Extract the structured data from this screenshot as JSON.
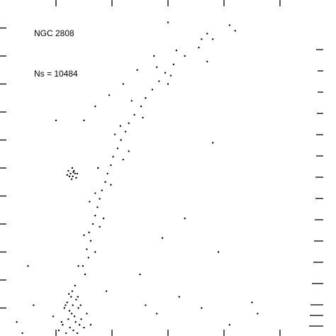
{
  "chart_data": {
    "type": "scatter",
    "annotations": [
      "NGC 2808",
      "Ns = 10484"
    ],
    "color": "#000000",
    "xlim": [
      0,
      6
    ],
    "ylim": [
      24,
      12
    ],
    "xticks": [
      1,
      2,
      3,
      4,
      5
    ],
    "yticks": [
      13,
      14,
      15,
      16,
      17,
      18,
      19,
      20,
      21,
      22,
      23
    ],
    "x": [
      1.05,
      1.12,
      1.18,
      1.22,
      1.25,
      1.28,
      1.31,
      1.35,
      1.38,
      1.42,
      1.15,
      1.2,
      1.24,
      1.27,
      1.3,
      1.33,
      1.36,
      1.4,
      1.45,
      1.5,
      1.1,
      1.17,
      1.23,
      1.29,
      1.34,
      1.39,
      1.44,
      1.55,
      1.62,
      0.95,
      1.52,
      1.48,
      1.58,
      1.55,
      1.62,
      1.59,
      1.66,
      1.7,
      1.74,
      1.78,
      1.82,
      1.88,
      1.92,
      1.98,
      2.02,
      2.1,
      2.16,
      2.24,
      2.3,
      2.4,
      2.52,
      2.6,
      2.72,
      2.84,
      2.95,
      3.1,
      3.3,
      3.55,
      3.8,
      4.2,
      1.7,
      1.5,
      1.85,
      1.6,
      1.98,
      1.75,
      2.3,
      2.05,
      2.55,
      2.35,
      3.0,
      2.8,
      3.15,
      3.6,
      1.4,
      1.78,
      1.7,
      2.2,
      2.15,
      3.05,
      1.22,
      1.26,
      1.3,
      1.34,
      1.28,
      1.32,
      1.24,
      1.38,
      1.29,
      1.36,
      1.2,
      1.31,
      1.5,
      1.7,
      1.95,
      2.2,
      2.45,
      2.75,
      3.7,
      4.1,
      0.3,
      0.6,
      2.8,
      3.2,
      3.6,
      4.1,
      4.5,
      3.8,
      2.9,
      3.3,
      0.5,
      2.5,
      3.9,
      1.9,
      2.6,
      4.6,
      0.4,
      3.0,
      1.0,
      3.7
    ],
    "values": [
      23.8,
      23.6,
      23.9,
      23.4,
      23.7,
      23.2,
      23.8,
      23.5,
      23.9,
      23.6,
      23.0,
      22.8,
      23.1,
      22.6,
      22.9,
      23.3,
      22.7,
      23.0,
      23.4,
      23.7,
      23.5,
      22.9,
      22.5,
      22.4,
      22.2,
      22.6,
      22.9,
      23.2,
      23.6,
      23.3,
      21.8,
      21.5,
      21.2,
      20.9,
      20.6,
      20.3,
      20.0,
      19.7,
      19.4,
      19.1,
      18.8,
      18.5,
      18.2,
      17.9,
      17.6,
      17.3,
      17.0,
      16.7,
      16.4,
      16.1,
      15.8,
      15.5,
      15.2,
      14.9,
      14.6,
      14.3,
      14.0,
      13.7,
      13.4,
      13.1,
      21.0,
      20.4,
      19.8,
      19.2,
      18.6,
      18.0,
      17.4,
      16.8,
      16.2,
      15.6,
      15.0,
      14.4,
      13.8,
      13.4,
      21.5,
      20.1,
      18.9,
      17.7,
      16.5,
      14.7,
      18.1,
      18.2,
      18.3,
      18.2,
      18.4,
      18.1,
      18.3,
      18.2,
      18.0,
      18.35,
      18.25,
      18.15,
      16.3,
      15.8,
      15.4,
      15.0,
      14.5,
      14.0,
      13.2,
      12.9,
      23.5,
      22.9,
      23.2,
      22.6,
      23.0,
      23.6,
      22.8,
      17.1,
      20.5,
      19.8,
      21.5,
      21.8,
      21.0,
      22.4,
      22.9,
      23.2,
      23.9,
      12.8,
      16.3,
      14.2
    ]
  }
}
